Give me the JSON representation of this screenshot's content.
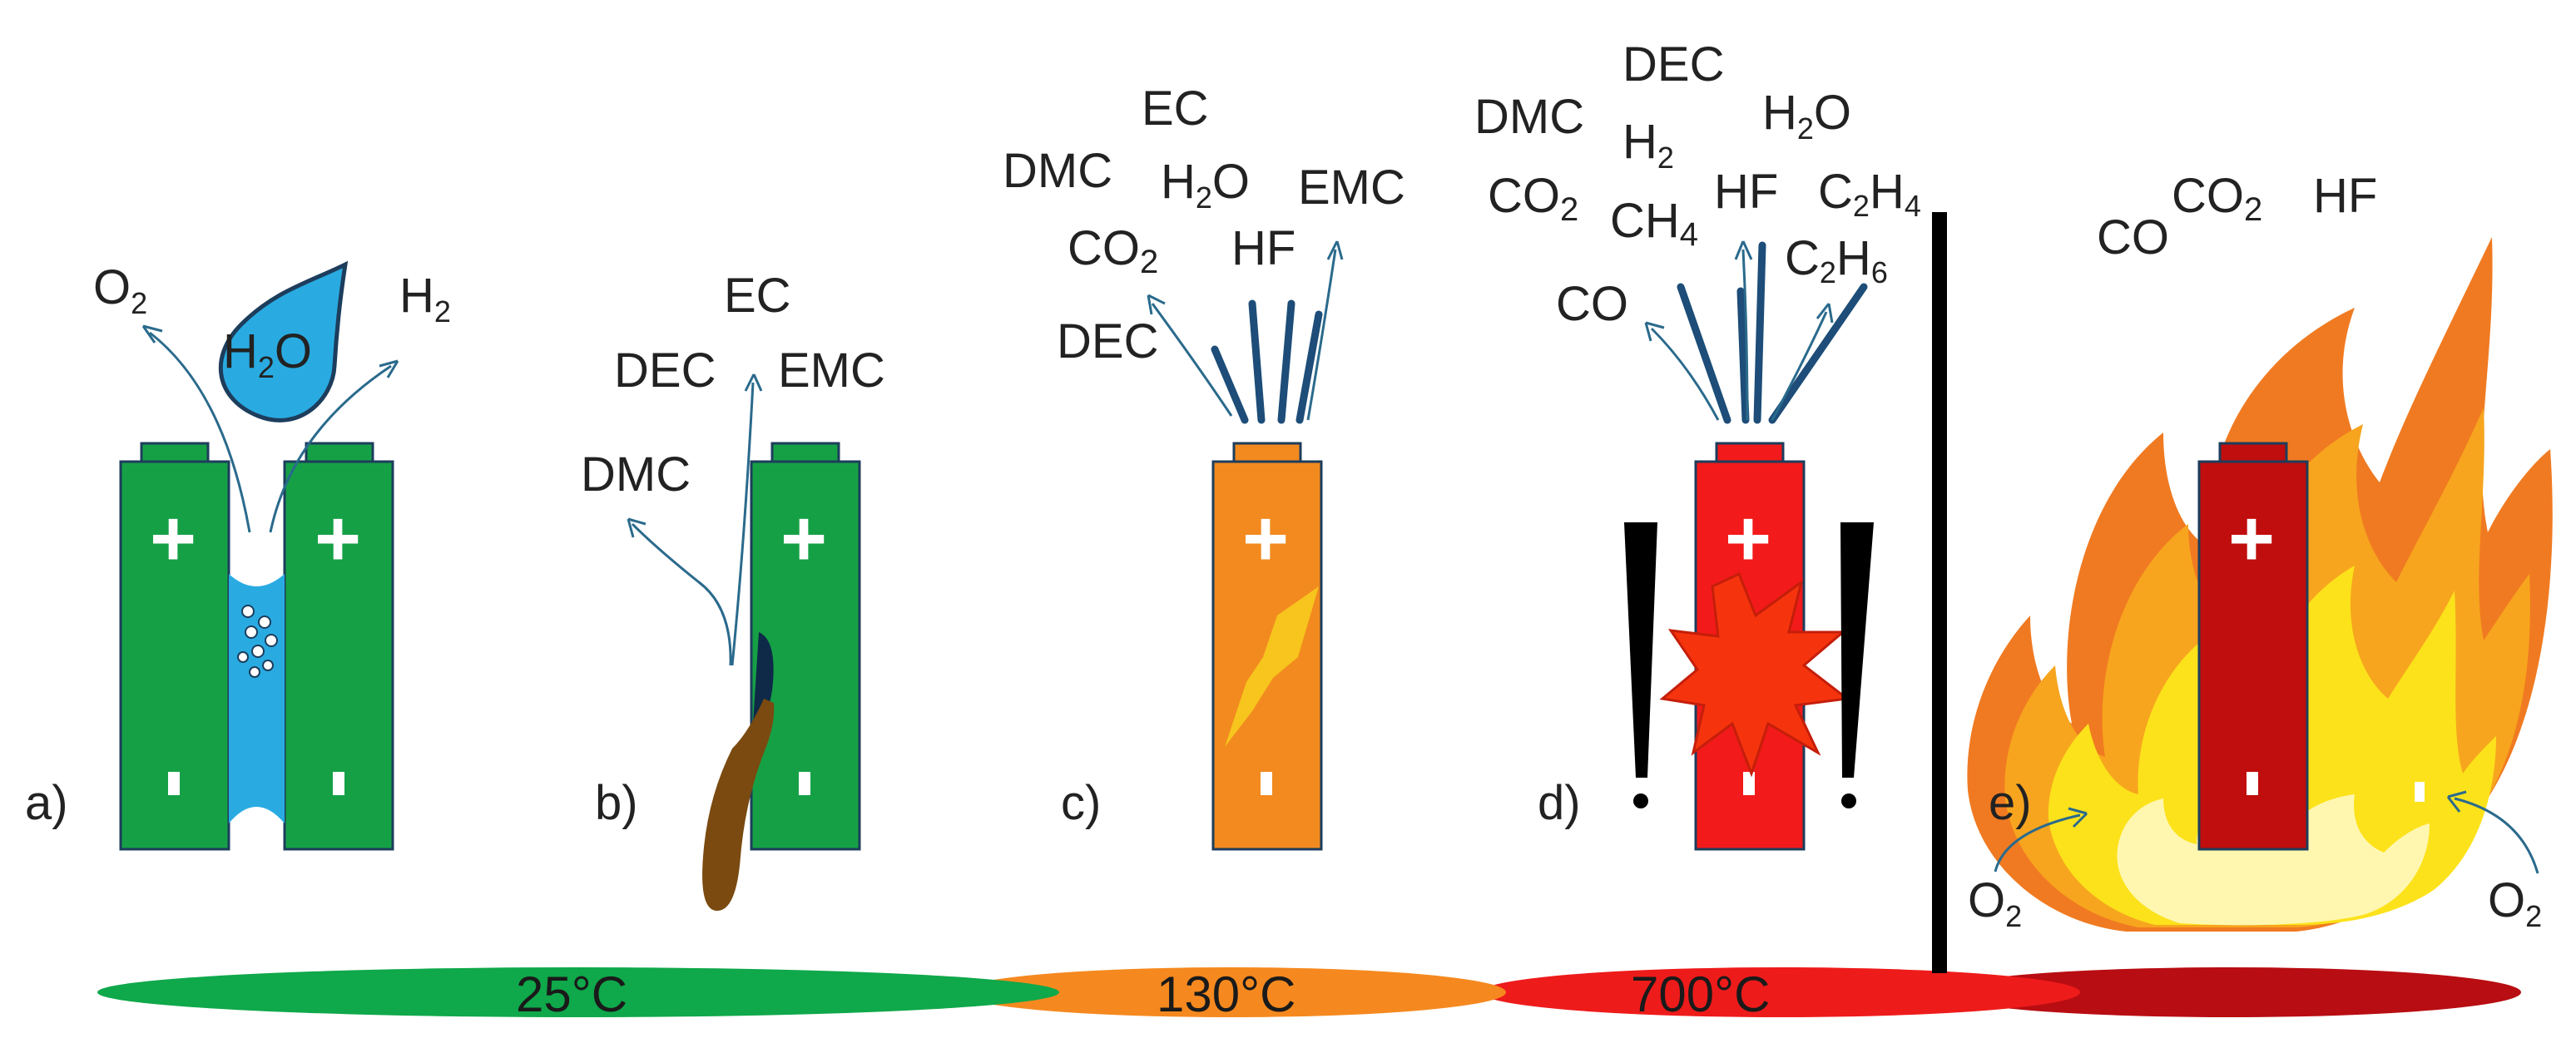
{
  "colors": {
    "green": "#16a046",
    "orange": "#f28a1f",
    "red": "#f21a1a",
    "darkred": "#c00d0d",
    "water": "#29abe2",
    "outline": "#1d3d5c",
    "arrow": "#2a6a8c",
    "divider": "#000000",
    "bar_green": "#0fa84a",
    "bar_orange": "#f5891f",
    "bar_red": "#ee1b1b",
    "bar_darkred": "#b80d12"
  },
  "battery": {
    "plus_symbol": "+",
    "minus_symbol": "-"
  },
  "panels": {
    "a": {
      "label": "a)",
      "gases": {
        "o2": {
          "base": "O",
          "sub": "2"
        },
        "h2o": {
          "base": "H",
          "sub": "2",
          "tail": "O"
        },
        "h2": {
          "base": "H",
          "sub": "2"
        }
      }
    },
    "b": {
      "label": "b)",
      "gases": {
        "ec": "EC",
        "dec": "DEC",
        "emc": "EMC",
        "dmc": "DMC"
      }
    },
    "c": {
      "label": "c)",
      "gases": {
        "ec": "EC",
        "dmc": "DMC",
        "h2o": {
          "base": "H",
          "sub": "2",
          "tail": "O"
        },
        "emc": "EMC",
        "co2": {
          "base": "CO",
          "sub": "2"
        },
        "hf": "HF",
        "dec": "DEC"
      }
    },
    "d": {
      "label": "d)",
      "exclamation": "!",
      "gases": {
        "dec": "DEC",
        "dmc": "DMC",
        "h2": {
          "base": "H",
          "sub": "2"
        },
        "h2o": {
          "base": "H",
          "sub": "2",
          "tail": "O"
        },
        "co2": {
          "base": "CO",
          "sub": "2"
        },
        "ch4": {
          "base": "CH",
          "sub": "4"
        },
        "hf": "HF",
        "c2h4": {
          "p1": "C",
          "s1": "2",
          "p2": "H",
          "s2": "4"
        },
        "c2h6": {
          "p1": "C",
          "s1": "2",
          "p2": "H",
          "s2": "6"
        },
        "co": "CO"
      }
    },
    "e": {
      "label": "e)",
      "gases": {
        "co": "CO",
        "co2": {
          "base": "CO",
          "sub": "2"
        },
        "hf": "HF",
        "o2_left": {
          "base": "O",
          "sub": "2"
        },
        "o2_right": {
          "base": "O",
          "sub": "2"
        }
      }
    }
  },
  "temperature_bar": {
    "t25": "25°C",
    "t130": "130°C",
    "t700": "700°C"
  }
}
